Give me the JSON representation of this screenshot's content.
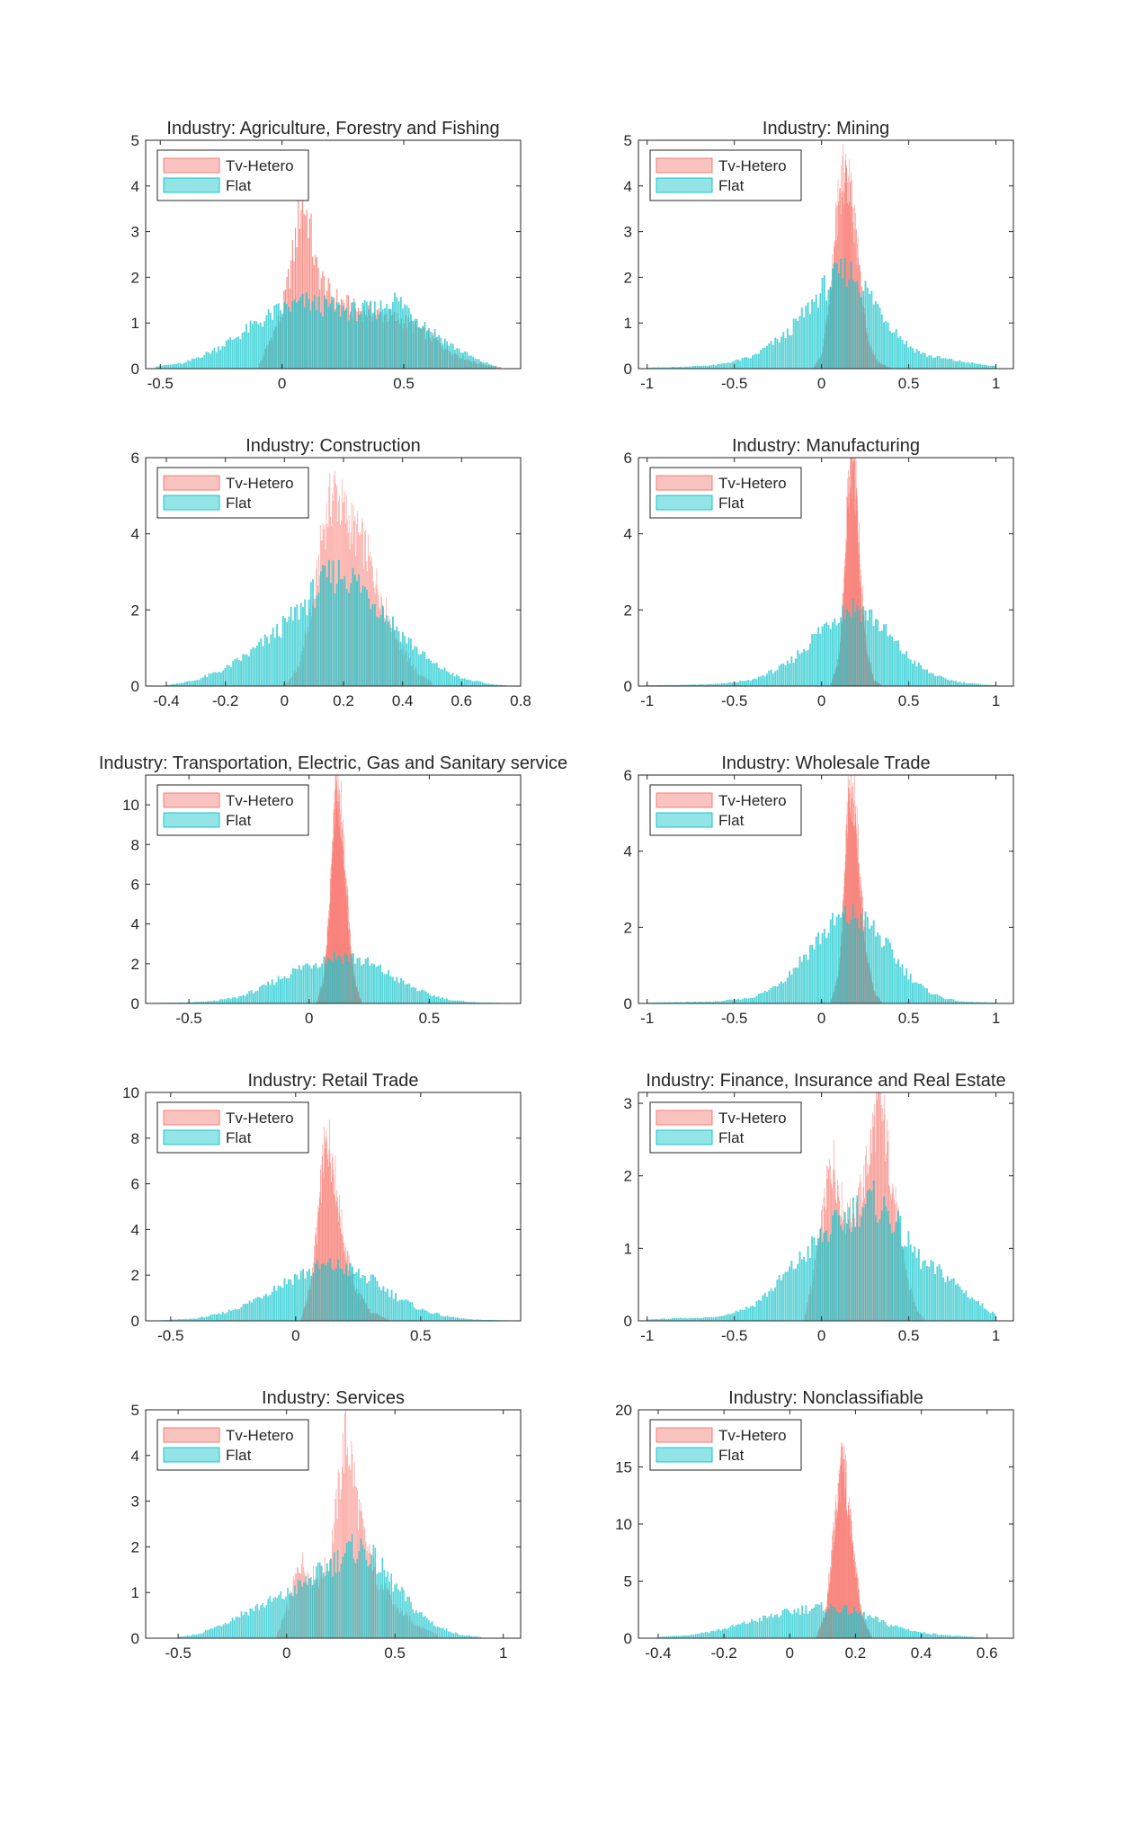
{
  "figure_title": "",
  "colors": {
    "tv_hetero": "#f87c74",
    "flat": "#19c6cc",
    "tv_hetero_legend": "#f9c3c0",
    "flat_legend": "#93e4e6",
    "axis": "#262626"
  },
  "chart_data": [
    {
      "type": "histogram",
      "title": "Industry: Agriculture, Forestry and Fishing",
      "xlim": [
        -0.56,
        0.98
      ],
      "ylim": [
        0,
        5
      ],
      "xticks": [
        -0.5,
        0,
        0.5
      ],
      "xtick_labels": [
        "-0.5",
        "0",
        "0.5"
      ],
      "yticks": [
        0,
        1,
        2,
        3,
        4,
        5
      ],
      "ytick_labels": [
        "0",
        "1",
        "2",
        "3",
        "4",
        "5"
      ],
      "legend": [
        "Tv-Hetero",
        "Flat"
      ],
      "legend_position": "top-left",
      "series": [
        {
          "name": "Tv-Hetero",
          "x": [
            -0.1,
            0.0,
            0.05,
            0.08,
            0.11,
            0.14,
            0.2,
            0.3,
            0.4,
            0.5,
            0.6,
            0.7,
            0.8,
            0.9
          ],
          "y": [
            0.0,
            1.2,
            2.6,
            3.7,
            3.3,
            2.2,
            1.6,
            1.3,
            1.2,
            1.05,
            0.75,
            0.35,
            0.12,
            0.03
          ]
        },
        {
          "name": "Flat",
          "x": [
            -0.52,
            -0.4,
            -0.3,
            -0.2,
            -0.1,
            0.0,
            0.1,
            0.2,
            0.3,
            0.4,
            0.45,
            0.5,
            0.6,
            0.7,
            0.8,
            0.88
          ],
          "y": [
            0.05,
            0.12,
            0.35,
            0.65,
            1.0,
            1.3,
            1.45,
            1.35,
            1.25,
            1.3,
            1.55,
            1.4,
            0.9,
            0.5,
            0.2,
            0.05
          ]
        }
      ]
    },
    {
      "type": "histogram",
      "title": "Industry: Mining",
      "xlim": [
        -1.05,
        1.1
      ],
      "ylim": [
        0,
        5
      ],
      "xticks": [
        -1,
        -0.5,
        0,
        0.5,
        1
      ],
      "xtick_labels": [
        "-1",
        "-0.5",
        "0",
        "0.5",
        "1"
      ],
      "yticks": [
        0,
        1,
        2,
        3,
        4,
        5
      ],
      "ytick_labels": [
        "0",
        "1",
        "2",
        "3",
        "4",
        "5"
      ],
      "legend": [
        "Tv-Hetero",
        "Flat"
      ],
      "legend_position": "top-left",
      "series": [
        {
          "name": "Tv-Hetero",
          "x": [
            -0.05,
            0.0,
            0.05,
            0.08,
            0.11,
            0.14,
            0.17,
            0.2,
            0.23,
            0.27,
            0.32,
            0.4
          ],
          "y": [
            0.0,
            0.3,
            1.6,
            3.0,
            4.1,
            4.3,
            3.8,
            2.8,
            1.6,
            0.6,
            0.15,
            0.0
          ]
        },
        {
          "name": "Flat",
          "x": [
            -1.0,
            -0.8,
            -0.6,
            -0.4,
            -0.2,
            -0.1,
            0.0,
            0.1,
            0.15,
            0.2,
            0.3,
            0.4,
            0.5,
            0.6,
            0.7,
            0.8,
            0.9,
            1.0
          ],
          "y": [
            0.02,
            0.04,
            0.08,
            0.25,
            0.75,
            1.2,
            1.7,
            2.05,
            2.15,
            2.0,
            1.5,
            0.95,
            0.5,
            0.3,
            0.22,
            0.16,
            0.1,
            0.05
          ]
        }
      ]
    },
    {
      "type": "histogram",
      "title": "Industry: Construction",
      "xlim": [
        -0.47,
        0.8
      ],
      "ylim": [
        0,
        6
      ],
      "xticks": [
        -0.4,
        -0.2,
        0,
        0.2,
        0.4,
        0.6,
        0.8
      ],
      "xtick_labels": [
        "-0.4",
        "-0.2",
        "0",
        "0.2",
        "0.4",
        "0.6",
        "0.8"
      ],
      "yticks": [
        0,
        2,
        4,
        6
      ],
      "ytick_labels": [
        "0",
        "2",
        "4",
        "6"
      ],
      "legend": [
        "Tv-Hetero",
        "Flat"
      ],
      "legend_position": "top-left",
      "series": [
        {
          "name": "Tv-Hetero",
          "x": [
            0.0,
            0.05,
            0.1,
            0.13,
            0.17,
            0.2,
            0.23,
            0.27,
            0.3,
            0.35,
            0.4,
            0.45,
            0.5
          ],
          "y": [
            0.0,
            0.5,
            2.2,
            4.1,
            5.2,
            4.6,
            4.2,
            3.7,
            3.0,
            1.9,
            1.0,
            0.35,
            0.1
          ]
        },
        {
          "name": "Flat",
          "x": [
            -0.4,
            -0.3,
            -0.2,
            -0.1,
            0.0,
            0.05,
            0.1,
            0.15,
            0.2,
            0.25,
            0.3,
            0.4,
            0.5,
            0.6,
            0.7,
            0.75
          ],
          "y": [
            0.02,
            0.15,
            0.45,
            0.95,
            1.6,
            2.0,
            2.45,
            2.85,
            3.0,
            2.7,
            2.3,
            1.35,
            0.6,
            0.2,
            0.05,
            0.02
          ]
        }
      ]
    },
    {
      "type": "histogram",
      "title": "Industry: Manufacturing",
      "xlim": [
        -1.05,
        1.1
      ],
      "ylim": [
        0,
        6
      ],
      "xticks": [
        -1,
        -0.5,
        0,
        0.5,
        1
      ],
      "xtick_labels": [
        "-1",
        "-0.5",
        "0",
        "0.5",
        "1"
      ],
      "yticks": [
        0,
        2,
        4,
        6
      ],
      "ytick_labels": [
        "0",
        "2",
        "4",
        "6"
      ],
      "legend": [
        "Tv-Hetero",
        "Flat"
      ],
      "legend_position": "top-left",
      "series": [
        {
          "name": "Tv-Hetero",
          "x": [
            0.05,
            0.1,
            0.13,
            0.15,
            0.17,
            0.19,
            0.21,
            0.23,
            0.26,
            0.3,
            0.35
          ],
          "y": [
            0.0,
            0.7,
            2.8,
            4.9,
            5.9,
            5.5,
            4.2,
            2.5,
            0.9,
            0.15,
            0.0
          ]
        },
        {
          "name": "Flat",
          "x": [
            -1.0,
            -0.8,
            -0.6,
            -0.4,
            -0.2,
            -0.1,
            0.0,
            0.1,
            0.2,
            0.3,
            0.4,
            0.5,
            0.6,
            0.7,
            0.8,
            0.9,
            1.0
          ],
          "y": [
            0.02,
            0.03,
            0.05,
            0.15,
            0.55,
            1.0,
            1.5,
            1.95,
            2.1,
            1.8,
            1.25,
            0.75,
            0.4,
            0.2,
            0.1,
            0.05,
            0.02
          ]
        }
      ]
    },
    {
      "type": "histogram",
      "title": "Industry: Transportation, Electric, Gas and Sanitary service",
      "xlim": [
        -0.68,
        0.88
      ],
      "ylim": [
        0,
        11.5
      ],
      "xticks": [
        -0.5,
        0,
        0.5
      ],
      "xtick_labels": [
        "-0.5",
        "0",
        "0.5"
      ],
      "yticks": [
        0,
        2,
        4,
        6,
        8,
        10
      ],
      "ytick_labels": [
        "0",
        "2",
        "4",
        "6",
        "8",
        "10"
      ],
      "legend": [
        "Tv-Hetero",
        "Flat"
      ],
      "legend_position": "top-left",
      "series": [
        {
          "name": "Tv-Hetero",
          "x": [
            0.03,
            0.06,
            0.08,
            0.1,
            0.11,
            0.12,
            0.13,
            0.15,
            0.17,
            0.19,
            0.22
          ],
          "y": [
            0.0,
            1.2,
            4.0,
            8.0,
            10.5,
            11.3,
            10.0,
            6.5,
            3.2,
            1.0,
            0.0
          ]
        },
        {
          "name": "Flat",
          "x": [
            -0.65,
            -0.5,
            -0.4,
            -0.3,
            -0.2,
            -0.1,
            0.0,
            0.1,
            0.15,
            0.2,
            0.3,
            0.4,
            0.5,
            0.6,
            0.7,
            0.82
          ],
          "y": [
            0.02,
            0.05,
            0.12,
            0.3,
            0.75,
            1.4,
            2.0,
            2.35,
            2.4,
            2.25,
            1.7,
            1.0,
            0.45,
            0.15,
            0.05,
            0.02
          ]
        }
      ]
    },
    {
      "type": "histogram",
      "title": "Industry: Wholesale Trade",
      "xlim": [
        -1.05,
        1.1
      ],
      "ylim": [
        0,
        6
      ],
      "xticks": [
        -1,
        -0.5,
        0,
        0.5,
        1
      ],
      "xtick_labels": [
        "-1",
        "-0.5",
        "0",
        "0.5",
        "1"
      ],
      "yticks": [
        0,
        2,
        4,
        6
      ],
      "ytick_labels": [
        "0",
        "2",
        "4",
        "6"
      ],
      "legend": [
        "Tv-Hetero",
        "Flat"
      ],
      "legend_position": "top-left",
      "series": [
        {
          "name": "Tv-Hetero",
          "x": [
            0.05,
            0.1,
            0.13,
            0.15,
            0.17,
            0.19,
            0.21,
            0.23,
            0.26,
            0.3,
            0.35
          ],
          "y": [
            0.0,
            0.8,
            3.0,
            5.0,
            5.9,
            5.4,
            4.0,
            2.6,
            1.2,
            0.3,
            0.0
          ]
        },
        {
          "name": "Flat",
          "x": [
            -1.0,
            -0.6,
            -0.4,
            -0.3,
            -0.2,
            -0.1,
            0.0,
            0.1,
            0.2,
            0.3,
            0.4,
            0.5,
            0.6,
            0.7,
            0.8,
            1.0
          ],
          "y": [
            0.02,
            0.05,
            0.15,
            0.35,
            0.7,
            1.25,
            1.8,
            2.2,
            2.3,
            1.95,
            1.35,
            0.75,
            0.35,
            0.15,
            0.05,
            0.02
          ]
        }
      ]
    },
    {
      "type": "histogram",
      "title": "Industry: Retail Trade",
      "xlim": [
        -0.6,
        0.9
      ],
      "ylim": [
        0,
        10
      ],
      "xticks": [
        -0.5,
        0,
        0.5
      ],
      "xtick_labels": [
        "-0.5",
        "0",
        "0.5"
      ],
      "yticks": [
        0,
        2,
        4,
        6,
        8,
        10
      ],
      "ytick_labels": [
        "0",
        "2",
        "4",
        "6",
        "8",
        "10"
      ],
      "legend": [
        "Tv-Hetero",
        "Flat"
      ],
      "legend_position": "top-left",
      "series": [
        {
          "name": "Tv-Hetero",
          "x": [
            0.02,
            0.06,
            0.09,
            0.11,
            0.13,
            0.15,
            0.17,
            0.2,
            0.24,
            0.3,
            0.38
          ],
          "y": [
            0.0,
            1.5,
            4.5,
            7.0,
            8.0,
            7.0,
            5.2,
            3.0,
            1.4,
            0.4,
            0.0
          ]
        },
        {
          "name": "Flat",
          "x": [
            -0.55,
            -0.4,
            -0.3,
            -0.2,
            -0.1,
            0.0,
            0.1,
            0.15,
            0.2,
            0.3,
            0.4,
            0.5,
            0.6,
            0.7,
            0.85
          ],
          "y": [
            0.02,
            0.1,
            0.3,
            0.7,
            1.35,
            1.95,
            2.35,
            2.4,
            2.3,
            1.8,
            1.1,
            0.5,
            0.2,
            0.06,
            0.02
          ]
        }
      ]
    },
    {
      "type": "histogram",
      "title": "Industry: Finance, Insurance and Real Estate",
      "xlim": [
        -1.05,
        1.1
      ],
      "ylim": [
        0,
        3.15
      ],
      "xticks": [
        -1,
        -0.5,
        0,
        0.5,
        1
      ],
      "xtick_labels": [
        "-1",
        "-0.5",
        "0",
        "0.5",
        "1"
      ],
      "yticks": [
        0,
        1,
        2,
        3
      ],
      "ytick_labels": [
        "0",
        "1",
        "2",
        "3"
      ],
      "legend": [
        "Tv-Hetero",
        "Flat"
      ],
      "legend_position": "top-left",
      "series": [
        {
          "name": "Tv-Hetero",
          "x": [
            -0.1,
            -0.05,
            0.0,
            0.04,
            0.07,
            0.1,
            0.14,
            0.2,
            0.25,
            0.3,
            0.33,
            0.36,
            0.4,
            0.45,
            0.5,
            0.55,
            0.6
          ],
          "y": [
            0.0,
            0.6,
            1.3,
            2.0,
            2.2,
            1.8,
            1.4,
            1.5,
            2.0,
            2.7,
            3.05,
            2.7,
            2.0,
            1.2,
            0.5,
            0.15,
            0.0
          ]
        },
        {
          "name": "Flat",
          "x": [
            -1.0,
            -0.6,
            -0.4,
            -0.3,
            -0.2,
            -0.1,
            0.0,
            0.1,
            0.2,
            0.3,
            0.4,
            0.5,
            0.6,
            0.7,
            0.8,
            0.9,
            1.0
          ],
          "y": [
            0.02,
            0.05,
            0.2,
            0.4,
            0.65,
            0.9,
            1.15,
            1.35,
            1.55,
            1.65,
            1.45,
            1.05,
            0.75,
            0.65,
            0.45,
            0.25,
            0.08
          ]
        }
      ]
    },
    {
      "type": "histogram",
      "title": "Industry: Services",
      "xlim": [
        -0.65,
        1.08
      ],
      "ylim": [
        0,
        5
      ],
      "xticks": [
        -0.5,
        0,
        0.5,
        1
      ],
      "xtick_labels": [
        "-0.5",
        "0",
        "0.5",
        "1"
      ],
      "yticks": [
        0,
        1,
        2,
        3,
        4,
        5
      ],
      "ytick_labels": [
        "0",
        "1",
        "2",
        "3",
        "4",
        "5"
      ],
      "legend": [
        "Tv-Hetero",
        "Flat"
      ],
      "legend_position": "top-left",
      "series": [
        {
          "name": "Tv-Hetero",
          "x": [
            -0.05,
            0.0,
            0.04,
            0.07,
            0.1,
            0.15,
            0.2,
            0.24,
            0.27,
            0.3,
            0.33,
            0.37,
            0.42,
            0.5,
            0.6,
            0.7
          ],
          "y": [
            0.0,
            0.6,
            1.3,
            1.7,
            1.4,
            1.3,
            1.7,
            3.2,
            4.4,
            4.0,
            2.9,
            2.0,
            1.3,
            0.7,
            0.3,
            0.08
          ]
        },
        {
          "name": "Flat",
          "x": [
            -0.5,
            -0.4,
            -0.3,
            -0.2,
            -0.1,
            0.0,
            0.1,
            0.2,
            0.3,
            0.35,
            0.4,
            0.5,
            0.6,
            0.7,
            0.8,
            0.9
          ],
          "y": [
            0.02,
            0.1,
            0.3,
            0.55,
            0.75,
            0.95,
            1.25,
            1.6,
            1.95,
            1.95,
            1.75,
            1.15,
            0.6,
            0.25,
            0.08,
            0.02
          ]
        }
      ]
    },
    {
      "type": "histogram",
      "title": "Industry: Nonclassifiable",
      "xlim": [
        -0.46,
        0.68
      ],
      "ylim": [
        0,
        20
      ],
      "xticks": [
        -0.4,
        -0.2,
        0,
        0.2,
        0.4,
        0.6
      ],
      "xtick_labels": [
        "-0.4",
        "-0.2",
        "0",
        "0.2",
        "0.4",
        "0.6"
      ],
      "yticks": [
        0,
        5,
        10,
        15,
        20
      ],
      "ytick_labels": [
        "0",
        "5",
        "10",
        "15",
        "20"
      ],
      "legend": [
        "Tv-Hetero",
        "Flat"
      ],
      "legend_position": "top-left",
      "series": [
        {
          "name": "Tv-Hetero",
          "x": [
            0.08,
            0.11,
            0.13,
            0.15,
            0.16,
            0.17,
            0.18,
            0.2,
            0.22,
            0.25
          ],
          "y": [
            0.0,
            2.5,
            8.0,
            13.5,
            15.5,
            14.0,
            11.0,
            6.0,
            2.0,
            0.0
          ]
        },
        {
          "name": "Flat",
          "x": [
            -0.4,
            -0.3,
            -0.2,
            -0.1,
            0.0,
            0.05,
            0.1,
            0.15,
            0.2,
            0.25,
            0.3,
            0.4,
            0.5,
            0.6
          ],
          "y": [
            0.1,
            0.3,
            0.8,
            1.6,
            2.3,
            2.6,
            2.7,
            2.6,
            2.3,
            1.8,
            1.2,
            0.5,
            0.2,
            0.05
          ]
        }
      ]
    }
  ]
}
